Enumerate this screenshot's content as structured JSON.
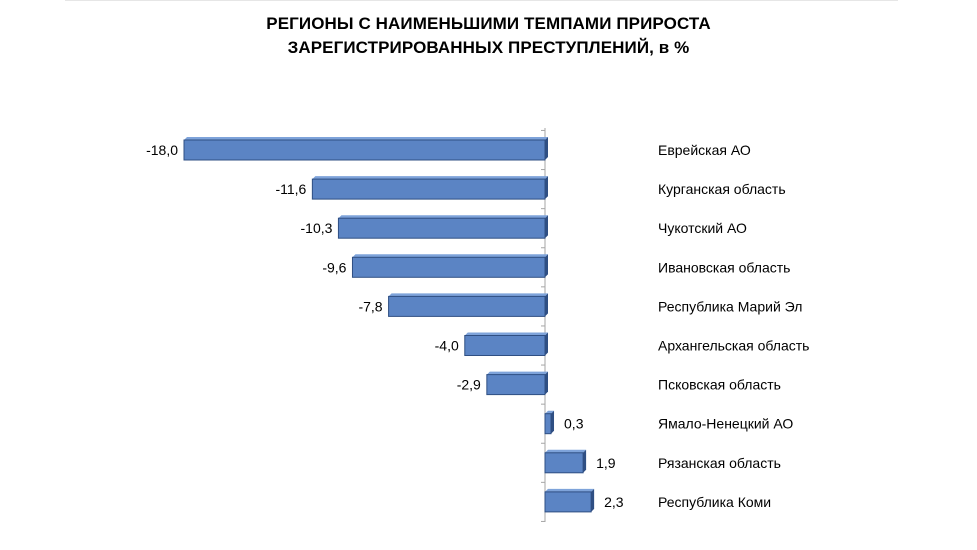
{
  "colors": {
    "bar_fill": "#5b84c4",
    "bar_top": "#7ea3da",
    "bar_side": "#2f4f83",
    "axis": "#a6a6a6",
    "text": "#000000"
  },
  "chart_data": {
    "type": "bar",
    "orientation": "horizontal",
    "title": "РЕГИОНЫ С НАИМЕНЬШИМИ ТЕМПАМИ ПРИРОСТА ЗАРЕГИСТРИРОВАННЫХ ПРЕСТУПЛЕНИЙ, в %",
    "title_lines": [
      "РЕГИОНЫ С НАИМЕНЬШИМИ ТЕМПАМИ ПРИРОСТА",
      "ЗАРЕГИСТРИРОВАННЫХ ПРЕСТУПЛЕНИЙ, в %"
    ],
    "categories": [
      "Еврейская АО",
      "Курганская область",
      "Чукотский АО",
      "Ивановская область",
      "Республика Марий Эл",
      "Архангельская область",
      "Псковская область",
      "Ямало-Ненецкий АО",
      "Рязанская область",
      "Республика Коми"
    ],
    "values": [
      -18.0,
      -11.6,
      -10.3,
      -9.6,
      -7.8,
      -4.0,
      -2.9,
      0.3,
      1.9,
      2.3
    ],
    "value_labels": [
      "-18,0",
      "-11,6",
      "-10,3",
      "-9,6",
      "-7,8",
      "-4,0",
      "-2,9",
      "0,3",
      "1,9",
      "2,3"
    ],
    "xlim": [
      -18.0,
      2.5
    ],
    "legend": "none",
    "grid": false
  }
}
